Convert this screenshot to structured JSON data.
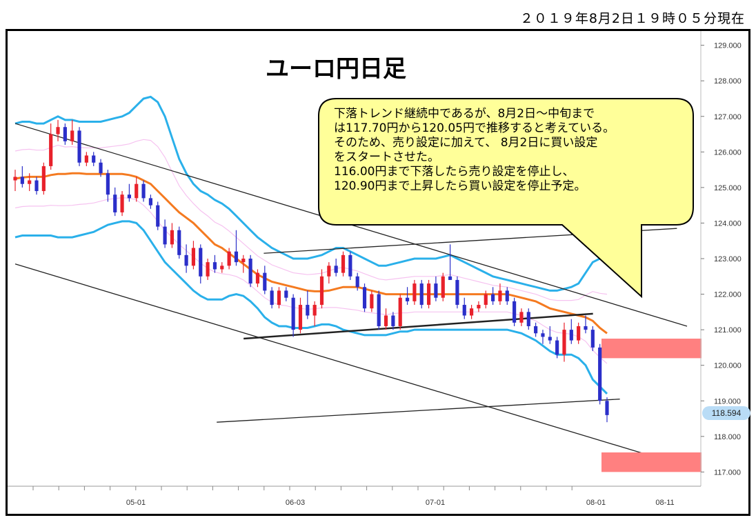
{
  "timestamp": "２０１９年8月2日１９時０５分現在",
  "title": "ユーロ円日足",
  "current_price": "118.594",
  "callout": {
    "lines": [
      "下落トレンド継続中であるが、8月2日～中旬まで",
      "は117.70円から120.05円で推移すると考えている。",
      "そのため、売り設定に加えて、 8月2日に買い設定",
      "をスタートさせた。",
      "116.00円まで下落したら売り設定を停止し、",
      "120.90円まで上昇したら買い設定を停止予定。"
    ]
  },
  "colors": {
    "up": "#e8212b",
    "down": "#2b2fc9",
    "ma": "#f47a20",
    "band_outer": "#2ab0ea",
    "band_inner": "#f6c2f0",
    "trend": "#222222",
    "zone": "#ff8080",
    "callout_bg": "#ffff99"
  },
  "chart_data": {
    "type": "candlestick",
    "y_axis": {
      "ticks": [
        "129.000",
        "128.000",
        "127.000",
        "126.000",
        "125.000",
        "124.000",
        "123.000",
        "122.000",
        "121.000",
        "120.000",
        "119.000",
        "118.000",
        "117.000"
      ],
      "ylim": [
        116.6,
        129.4
      ]
    },
    "x_axis": {
      "ticks": [
        "05-01",
        "06-03",
        "07-01",
        "08-01",
        "08-11"
      ]
    },
    "candles": [
      {
        "o": 125.2,
        "h": 125.5,
        "l": 124.9,
        "c": 125.3
      },
      {
        "o": 125.3,
        "h": 125.6,
        "l": 125.0,
        "c": 125.1
      },
      {
        "o": 125.1,
        "h": 125.4,
        "l": 124.9,
        "c": 125.2
      },
      {
        "o": 125.2,
        "h": 125.3,
        "l": 124.8,
        "c": 124.9
      },
      {
        "o": 124.9,
        "h": 125.7,
        "l": 124.8,
        "c": 125.6
      },
      {
        "o": 125.6,
        "h": 126.8,
        "l": 125.5,
        "c": 126.5
      },
      {
        "o": 126.5,
        "h": 126.9,
        "l": 126.3,
        "c": 126.7
      },
      {
        "o": 126.7,
        "h": 126.8,
        "l": 126.2,
        "c": 126.3
      },
      {
        "o": 126.3,
        "h": 126.9,
        "l": 126.2,
        "c": 126.6
      },
      {
        "o": 126.6,
        "h": 126.7,
        "l": 125.6,
        "c": 125.7
      },
      {
        "o": 125.7,
        "h": 126.0,
        "l": 125.6,
        "c": 125.9
      },
      {
        "o": 125.9,
        "h": 126.0,
        "l": 125.6,
        "c": 125.7
      },
      {
        "o": 125.7,
        "h": 125.8,
        "l": 125.3,
        "c": 125.4
      },
      {
        "o": 125.4,
        "h": 125.5,
        "l": 124.6,
        "c": 124.8
      },
      {
        "o": 124.8,
        "h": 125.0,
        "l": 124.2,
        "c": 124.3
      },
      {
        "o": 124.3,
        "h": 124.9,
        "l": 124.2,
        "c": 124.8
      },
      {
        "o": 124.8,
        "h": 125.1,
        "l": 124.6,
        "c": 124.7
      },
      {
        "o": 124.7,
        "h": 125.3,
        "l": 124.6,
        "c": 125.1
      },
      {
        "o": 125.1,
        "h": 125.2,
        "l": 124.6,
        "c": 124.7
      },
      {
        "o": 124.7,
        "h": 124.8,
        "l": 124.4,
        "c": 124.5
      },
      {
        "o": 124.5,
        "h": 124.6,
        "l": 123.8,
        "c": 123.9
      },
      {
        "o": 123.9,
        "h": 124.1,
        "l": 123.3,
        "c": 123.4
      },
      {
        "o": 123.4,
        "h": 124.0,
        "l": 123.3,
        "c": 123.8
      },
      {
        "o": 123.8,
        "h": 123.9,
        "l": 123.0,
        "c": 123.1
      },
      {
        "o": 123.1,
        "h": 123.4,
        "l": 122.6,
        "c": 122.8
      },
      {
        "o": 122.8,
        "h": 123.5,
        "l": 122.7,
        "c": 123.3
      },
      {
        "o": 123.3,
        "h": 123.4,
        "l": 122.3,
        "c": 122.5
      },
      {
        "o": 122.5,
        "h": 123.0,
        "l": 122.4,
        "c": 122.9
      },
      {
        "o": 122.9,
        "h": 123.1,
        "l": 122.6,
        "c": 122.7
      },
      {
        "o": 122.7,
        "h": 122.9,
        "l": 122.6,
        "c": 122.8
      },
      {
        "o": 122.8,
        "h": 123.3,
        "l": 122.7,
        "c": 123.2
      },
      {
        "o": 123.2,
        "h": 123.8,
        "l": 122.8,
        "c": 122.9
      },
      {
        "o": 122.9,
        "h": 123.1,
        "l": 122.6,
        "c": 123.0
      },
      {
        "o": 123.0,
        "h": 123.1,
        "l": 122.2,
        "c": 122.3
      },
      {
        "o": 122.3,
        "h": 122.7,
        "l": 122.2,
        "c": 122.6
      },
      {
        "o": 122.6,
        "h": 122.8,
        "l": 122.0,
        "c": 122.1
      },
      {
        "o": 122.1,
        "h": 122.2,
        "l": 121.6,
        "c": 121.7
      },
      {
        "o": 121.7,
        "h": 122.2,
        "l": 121.6,
        "c": 122.1
      },
      {
        "o": 122.1,
        "h": 122.2,
        "l": 121.8,
        "c": 121.9
      },
      {
        "o": 121.9,
        "h": 122.0,
        "l": 120.8,
        "c": 121.0
      },
      {
        "o": 121.0,
        "h": 121.9,
        "l": 120.9,
        "c": 121.7
      },
      {
        "o": 121.7,
        "h": 122.1,
        "l": 121.3,
        "c": 121.4
      },
      {
        "o": 121.4,
        "h": 121.8,
        "l": 121.1,
        "c": 121.7
      },
      {
        "o": 121.7,
        "h": 122.7,
        "l": 121.6,
        "c": 122.5
      },
      {
        "o": 122.5,
        "h": 122.9,
        "l": 122.3,
        "c": 122.8
      },
      {
        "o": 122.8,
        "h": 123.0,
        "l": 122.5,
        "c": 122.6
      },
      {
        "o": 122.6,
        "h": 123.2,
        "l": 122.5,
        "c": 123.1
      },
      {
        "o": 123.1,
        "h": 123.2,
        "l": 122.4,
        "c": 122.5
      },
      {
        "o": 122.5,
        "h": 122.6,
        "l": 122.1,
        "c": 122.2
      },
      {
        "o": 122.2,
        "h": 122.3,
        "l": 121.5,
        "c": 121.6
      },
      {
        "o": 121.6,
        "h": 122.1,
        "l": 121.5,
        "c": 122.0
      },
      {
        "o": 122.0,
        "h": 122.1,
        "l": 121.0,
        "c": 121.1
      },
      {
        "o": 121.1,
        "h": 121.6,
        "l": 121.0,
        "c": 121.4
      },
      {
        "o": 121.4,
        "h": 121.5,
        "l": 121.0,
        "c": 121.1
      },
      {
        "o": 121.1,
        "h": 122.0,
        "l": 121.0,
        "c": 121.9
      },
      {
        "o": 121.9,
        "h": 122.2,
        "l": 121.7,
        "c": 121.8
      },
      {
        "o": 121.8,
        "h": 122.4,
        "l": 121.7,
        "c": 122.3
      },
      {
        "o": 122.3,
        "h": 122.4,
        "l": 121.6,
        "c": 121.7
      },
      {
        "o": 121.7,
        "h": 122.4,
        "l": 121.6,
        "c": 122.3
      },
      {
        "o": 122.3,
        "h": 122.5,
        "l": 121.8,
        "c": 121.9
      },
      {
        "o": 121.9,
        "h": 122.6,
        "l": 121.8,
        "c": 122.5
      },
      {
        "o": 122.5,
        "h": 123.4,
        "l": 122.4,
        "c": 122.4
      },
      {
        "o": 122.4,
        "h": 122.5,
        "l": 121.6,
        "c": 121.7
      },
      {
        "o": 121.7,
        "h": 121.9,
        "l": 121.3,
        "c": 121.4
      },
      {
        "o": 121.4,
        "h": 121.7,
        "l": 121.3,
        "c": 121.6
      },
      {
        "o": 121.6,
        "h": 121.8,
        "l": 121.5,
        "c": 121.7
      },
      {
        "o": 121.7,
        "h": 122.1,
        "l": 121.6,
        "c": 122.0
      },
      {
        "o": 122.0,
        "h": 122.2,
        "l": 121.7,
        "c": 121.8
      },
      {
        "o": 121.8,
        "h": 122.3,
        "l": 121.7,
        "c": 122.1
      },
      {
        "o": 122.1,
        "h": 122.2,
        "l": 121.7,
        "c": 121.8
      },
      {
        "o": 121.8,
        "h": 121.9,
        "l": 121.1,
        "c": 121.2
      },
      {
        "o": 121.2,
        "h": 121.6,
        "l": 121.1,
        "c": 121.5
      },
      {
        "o": 121.5,
        "h": 121.6,
        "l": 121.0,
        "c": 121.1
      },
      {
        "o": 121.1,
        "h": 121.2,
        "l": 120.8,
        "c": 120.9
      },
      {
        "o": 120.9,
        "h": 121.0,
        "l": 120.6,
        "c": 120.8
      },
      {
        "o": 120.8,
        "h": 121.1,
        "l": 120.6,
        "c": 120.7
      },
      {
        "o": 120.7,
        "h": 120.8,
        "l": 120.2,
        "c": 120.3
      },
      {
        "o": 120.3,
        "h": 121.2,
        "l": 120.1,
        "c": 121.0
      },
      {
        "o": 121.0,
        "h": 121.3,
        "l": 120.6,
        "c": 120.7
      },
      {
        "o": 120.7,
        "h": 121.2,
        "l": 120.6,
        "c": 121.1
      },
      {
        "o": 121.1,
        "h": 121.4,
        "l": 120.9,
        "c": 121.0
      },
      {
        "o": 121.0,
        "h": 121.1,
        "l": 120.4,
        "c": 120.5
      },
      {
        "o": 120.5,
        "h": 120.6,
        "l": 118.9,
        "c": 119.0
      },
      {
        "o": 119.0,
        "h": 119.1,
        "l": 118.4,
        "c": 118.6
      }
    ],
    "ma": [
      125.25,
      125.28,
      125.3,
      125.3,
      125.3,
      125.35,
      125.38,
      125.38,
      125.4,
      125.4,
      125.38,
      125.38,
      125.38,
      125.38,
      125.38,
      125.38,
      125.35,
      125.3,
      125.2,
      125.1,
      124.9,
      124.7,
      124.5,
      124.3,
      124.15,
      124.0,
      123.8,
      123.6,
      123.4,
      123.3,
      123.15,
      123.0,
      122.85,
      122.7,
      122.55,
      122.45,
      122.35,
      122.3,
      122.25,
      122.2,
      122.15,
      122.1,
      122.08,
      122.08,
      122.1,
      122.15,
      122.2,
      122.2,
      122.2,
      122.15,
      122.1,
      122.05,
      122.0,
      122.0,
      122.0,
      122.0,
      122.0,
      122.0,
      122.0,
      122.0,
      122.0,
      122.0,
      122.0,
      122.0,
      122.0,
      122.0,
      122.0,
      122.0,
      122.0,
      122.0,
      121.95,
      121.9,
      121.85,
      121.8,
      121.7,
      121.6,
      121.55,
      121.5,
      121.45,
      121.4,
      121.35,
      121.25,
      121.05,
      120.9
    ],
    "band_upper": [
      126.8,
      126.85,
      126.85,
      126.8,
      126.8,
      126.9,
      127.0,
      126.9,
      126.9,
      126.85,
      126.85,
      126.85,
      126.85,
      126.9,
      126.95,
      127.0,
      127.1,
      127.3,
      127.5,
      127.55,
      127.4,
      127.0,
      126.4,
      125.8,
      125.4,
      125.1,
      124.9,
      124.8,
      124.65,
      124.55,
      124.4,
      124.2,
      124.0,
      123.8,
      123.6,
      123.45,
      123.3,
      123.2,
      123.1,
      123.0,
      123.0,
      123.0,
      123.05,
      123.1,
      123.2,
      123.3,
      123.3,
      123.2,
      123.1,
      123.0,
      122.9,
      122.8,
      122.8,
      122.85,
      122.9,
      122.95,
      123.0,
      123.0,
      123.0,
      123.0,
      123.05,
      123.1,
      123.0,
      122.9,
      122.8,
      122.7,
      122.6,
      122.5,
      122.45,
      122.4,
      122.35,
      122.3,
      122.25,
      122.2,
      122.15,
      122.1,
      122.1,
      122.15,
      122.2,
      122.3,
      122.6,
      122.9,
      123.0,
      123.1
    ],
    "band_lower": [
      123.6,
      123.65,
      123.65,
      123.65,
      123.65,
      123.65,
      123.6,
      123.6,
      123.6,
      123.65,
      123.7,
      123.75,
      123.85,
      123.95,
      124.0,
      124.05,
      124.05,
      124.0,
      123.8,
      123.5,
      123.2,
      122.9,
      122.7,
      122.5,
      122.3,
      122.1,
      121.95,
      121.85,
      121.85,
      121.85,
      121.95,
      122.0,
      121.95,
      121.8,
      121.6,
      121.35,
      121.2,
      121.1,
      121.1,
      121.05,
      121.05,
      121.05,
      121.1,
      121.15,
      121.15,
      121.1,
      121.0,
      120.95,
      120.9,
      120.85,
      120.85,
      120.85,
      120.85,
      120.9,
      120.95,
      120.95,
      121.0,
      121.0,
      121.0,
      121.0,
      121.0,
      121.0,
      121.0,
      121.0,
      121.0,
      121.0,
      121.0,
      121.0,
      121.0,
      121.0,
      120.95,
      120.9,
      120.8,
      120.7,
      120.55,
      120.4,
      120.3,
      120.3,
      120.3,
      120.2,
      120.0,
      119.6,
      119.4,
      119.2
    ],
    "trend_lines": [
      {
        "name": "upper-channel",
        "p1": [
          0.0,
          126.8
        ],
        "p2": [
          1.0,
          121.1
        ]
      },
      {
        "name": "lower-channel",
        "p1": [
          0.0,
          122.85
        ],
        "p2": [
          1.0,
          117.15
        ]
      },
      {
        "name": "support",
        "p1": [
          0.34,
          120.75
        ],
        "p2": [
          0.86,
          121.45
        ]
      },
      {
        "name": "small-channel-top",
        "p1": [
          0.37,
          123.15
        ],
        "p2": [
          0.985,
          123.85
        ]
      },
      {
        "name": "small-channel-bottom",
        "p1": [
          0.3,
          118.4
        ],
        "p2": [
          0.9,
          119.05
        ]
      }
    ],
    "zones": [
      {
        "name": "upper-zone",
        "y_top": 120.75,
        "y_bottom": 120.2
      },
      {
        "name": "lower-zone",
        "y_top": 117.55,
        "y_bottom": 117.0
      }
    ]
  }
}
